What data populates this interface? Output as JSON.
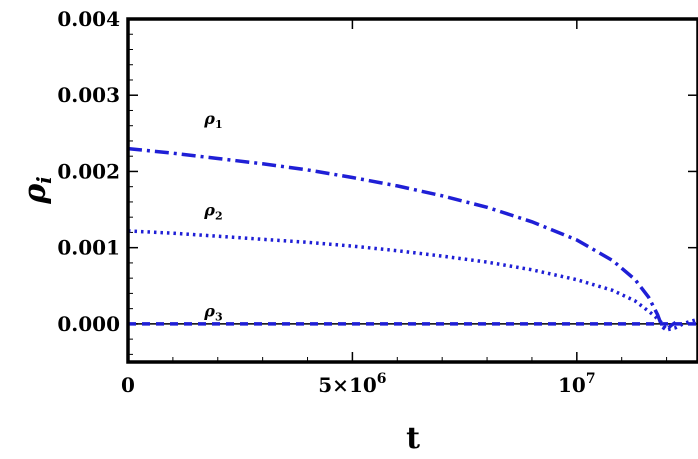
{
  "chart_data": {
    "type": "line",
    "title": "",
    "xlabel": "t",
    "ylabel": "ρ",
    "ylabel_subscript": "i",
    "xlim": [
      0,
      12700000
    ],
    "ylim": [
      -0.0005,
      0.004
    ],
    "grid": false,
    "legend": "none",
    "x_ticks": [
      {
        "value": 0,
        "label": "0"
      },
      {
        "value": 5000000,
        "label": "5×10",
        "exp": "6"
      },
      {
        "value": 10000000,
        "label": "10",
        "exp": "7"
      }
    ],
    "y_ticks": [
      {
        "value": 0.0,
        "label": "0.000"
      },
      {
        "value": 0.001,
        "label": "0.001"
      },
      {
        "value": 0.002,
        "label": "0.002"
      },
      {
        "value": 0.003,
        "label": "0.003"
      },
      {
        "value": 0.004,
        "label": "0.004"
      }
    ],
    "series": [
      {
        "name": "ρ1",
        "label_base": "ρ",
        "label_sub": "1",
        "color": "#1f1fd6",
        "dash": "dash-dot",
        "label_at": [
          1700000,
          0.00262
        ],
        "x": [
          0,
          1000000,
          2000000,
          3000000,
          4000000,
          5000000,
          6000000,
          7000000,
          8000000,
          9000000,
          10000000,
          10800000,
          11300000,
          11600000,
          11800000,
          11900000,
          12000000,
          12100000,
          12200000
        ],
        "y": [
          0.0023,
          0.00224,
          0.00217,
          0.0021,
          0.00202,
          0.00192,
          0.00181,
          0.00168,
          0.00153,
          0.00134,
          0.0011,
          0.00083,
          0.00058,
          0.00035,
          0.00012,
          -4e-05,
          -8e-05,
          -2e-05,
          2e-05
        ]
      },
      {
        "name": "ρ2",
        "label_base": "ρ",
        "label_sub": "2",
        "color": "#1f1fd6",
        "dash": "dotted",
        "label_at": [
          1700000,
          0.00142
        ],
        "x": [
          0,
          1000000,
          2000000,
          3000000,
          4000000,
          5000000,
          6000000,
          7000000,
          8000000,
          9000000,
          10000000,
          10800000,
          11300000,
          11700000,
          11900000,
          12000000,
          12200000,
          12400000,
          12700000
        ],
        "y": [
          0.00122,
          0.00119,
          0.00115,
          0.00111,
          0.00107,
          0.00102,
          0.00096,
          0.00089,
          0.00081,
          0.00071,
          0.00058,
          0.00044,
          0.0003,
          0.00012,
          1e-05,
          -8e-05,
          -5e-05,
          1e-05,
          6e-05
        ]
      },
      {
        "name": "ρ3",
        "label_base": "ρ",
        "label_sub": "3",
        "color": "#1f1fd6",
        "dash": "dashed",
        "label_at": [
          1700000,
          0.0001
        ],
        "x": [
          0,
          12700000
        ],
        "y": [
          0.0,
          0.0
        ]
      }
    ]
  }
}
